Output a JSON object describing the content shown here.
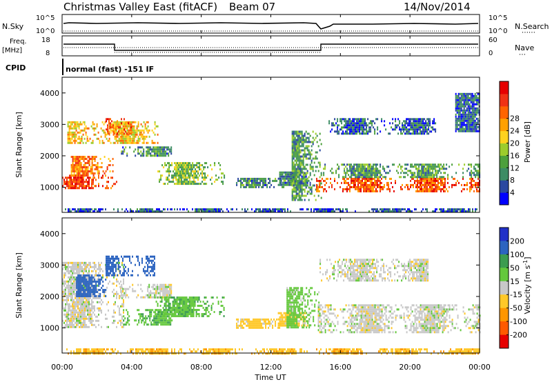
{
  "header": {
    "title": "Christmas Valley East (fitACF)",
    "beam": "Beam 07",
    "date": "14/Nov/2014"
  },
  "strips": {
    "nsky_label": "N.Sky",
    "nsearch_label": "N.Search",
    "nsky_top_tick": "10^5",
    "nsky_bot_tick": "10^0",
    "nsearch_top_tick": "10^5",
    "nsearch_bot_tick": "10^0",
    "freq_label_1": "Freq.",
    "freq_label_2": "[MHz]",
    "freq_top_tick": "18",
    "freq_bot_tick": "8",
    "nave_label": "Nave",
    "nave_top_tick": "60",
    "nave_bot_tick": "0",
    "cpid_label": "CPID",
    "cpid_value": "normal (fast) -151 IF"
  },
  "power_panel": {
    "ylabel": "Slant Range [km]",
    "yticks": [
      "1000",
      "2000",
      "3000",
      "4000"
    ]
  },
  "velocity_panel": {
    "ylabel": "Slant Range [km]",
    "yticks": [
      "1000",
      "2000",
      "3000",
      "4000"
    ]
  },
  "time_axis": {
    "xlabel": "Time UT",
    "ticks": [
      "00:00",
      "04:00",
      "08:00",
      "12:00",
      "16:00",
      "20:00",
      "00:00"
    ]
  },
  "power_colorbar": {
    "label": "Power [dB]",
    "ticks": [
      "4",
      "8",
      "12",
      "16",
      "20",
      "24",
      "28"
    ],
    "colors": [
      "#0000ff",
      "#2b48a0",
      "#3c8c64",
      "#4ca03c",
      "#9ccc2c",
      "#ffd21e",
      "#ffa000",
      "#ff6400",
      "#f03214",
      "#e60000"
    ]
  },
  "velocity_colorbar": {
    "label": "Velocity [m s^-1]",
    "ticks": [
      "200",
      "100",
      "50",
      "15",
      "-15",
      "-50",
      "-100",
      "-200"
    ],
    "colors": [
      "#2030c8",
      "#2c64c0",
      "#3c9c50",
      "#64c83c",
      "#c8c8c8",
      "#ffc828",
      "#ff9600",
      "#ff5a00",
      "#e60000"
    ]
  },
  "chart_data": [
    {
      "type": "heatmap",
      "name": "Power",
      "x_unit": "hours UT",
      "xlim": [
        0,
        24
      ],
      "ylim": [
        200,
        4500
      ],
      "regions": [
        {
          "x": [
            0.0,
            3.2
          ],
          "y": [
            950,
            1400
          ],
          "value": 26
        },
        {
          "x": [
            0.5,
            3.0
          ],
          "y": [
            1400,
            2000
          ],
          "value": 22
        },
        {
          "x": [
            0.3,
            5.5
          ],
          "y": [
            2400,
            3100
          ],
          "value": 18
        },
        {
          "x": [
            2.5,
            4.0
          ],
          "y": [
            2700,
            3200
          ],
          "value": 24
        },
        {
          "x": [
            3.3,
            6.3
          ],
          "y": [
            2000,
            2300
          ],
          "value": 8
        },
        {
          "x": [
            5.4,
            9.3
          ],
          "y": [
            1100,
            1800
          ],
          "value": 12
        },
        {
          "x": [
            10.0,
            12.8
          ],
          "y": [
            1000,
            1300
          ],
          "value": 8
        },
        {
          "x": [
            12.4,
            14.3
          ],
          "y": [
            1100,
            1500
          ],
          "value": 8
        },
        {
          "x": [
            13.2,
            14.9
          ],
          "y": [
            600,
            2800
          ],
          "value": 10
        },
        {
          "x": [
            14.6,
            24.0
          ],
          "y": [
            850,
            1300
          ],
          "value": 24
        },
        {
          "x": [
            15.0,
            24.0
          ],
          "y": [
            1300,
            1750
          ],
          "value": 10
        },
        {
          "x": [
            15.0,
            21.5
          ],
          "y": [
            2700,
            3200
          ],
          "value": 6
        },
        {
          "x": [
            0.0,
            24.0
          ],
          "y": [
            200,
            330
          ],
          "value": 5
        },
        {
          "x": [
            22.6,
            24.0
          ],
          "y": [
            2800,
            4000
          ],
          "value": 6
        }
      ]
    },
    {
      "type": "heatmap",
      "name": "Velocity",
      "x_unit": "hours UT",
      "xlim": [
        0,
        24
      ],
      "ylim": [
        200,
        4500
      ],
      "regions": [
        {
          "x": [
            0.0,
            3.5
          ],
          "y": [
            1000,
            3100
          ],
          "value": 0
        },
        {
          "x": [
            0.8,
            2.5
          ],
          "y": [
            2000,
            2700
          ],
          "value": 180
        },
        {
          "x": [
            2.5,
            5.3
          ],
          "y": [
            2700,
            3300
          ],
          "value": 150
        },
        {
          "x": [
            3.3,
            6.3
          ],
          "y": [
            2000,
            2400
          ],
          "value": 0
        },
        {
          "x": [
            3.5,
            6.3
          ],
          "y": [
            1100,
            1600
          ],
          "value": 40
        },
        {
          "x": [
            5.3,
            9.3
          ],
          "y": [
            1400,
            2000
          ],
          "value": 40
        },
        {
          "x": [
            10.0,
            12.8
          ],
          "y": [
            1000,
            1300
          ],
          "value": -30
        },
        {
          "x": [
            12.4,
            14.1
          ],
          "y": [
            1100,
            1500
          ],
          "value": -30
        },
        {
          "x": [
            12.9,
            14.8
          ],
          "y": [
            1000,
            2300
          ],
          "value": 30
        },
        {
          "x": [
            14.7,
            24.0
          ],
          "y": [
            850,
            1750
          ],
          "value": 0
        },
        {
          "x": [
            14.8,
            21.0
          ],
          "y": [
            2500,
            3200
          ],
          "value": 0
        },
        {
          "x": [
            0.0,
            24.0
          ],
          "y": [
            200,
            350
          ],
          "value": -40
        }
      ]
    }
  ]
}
